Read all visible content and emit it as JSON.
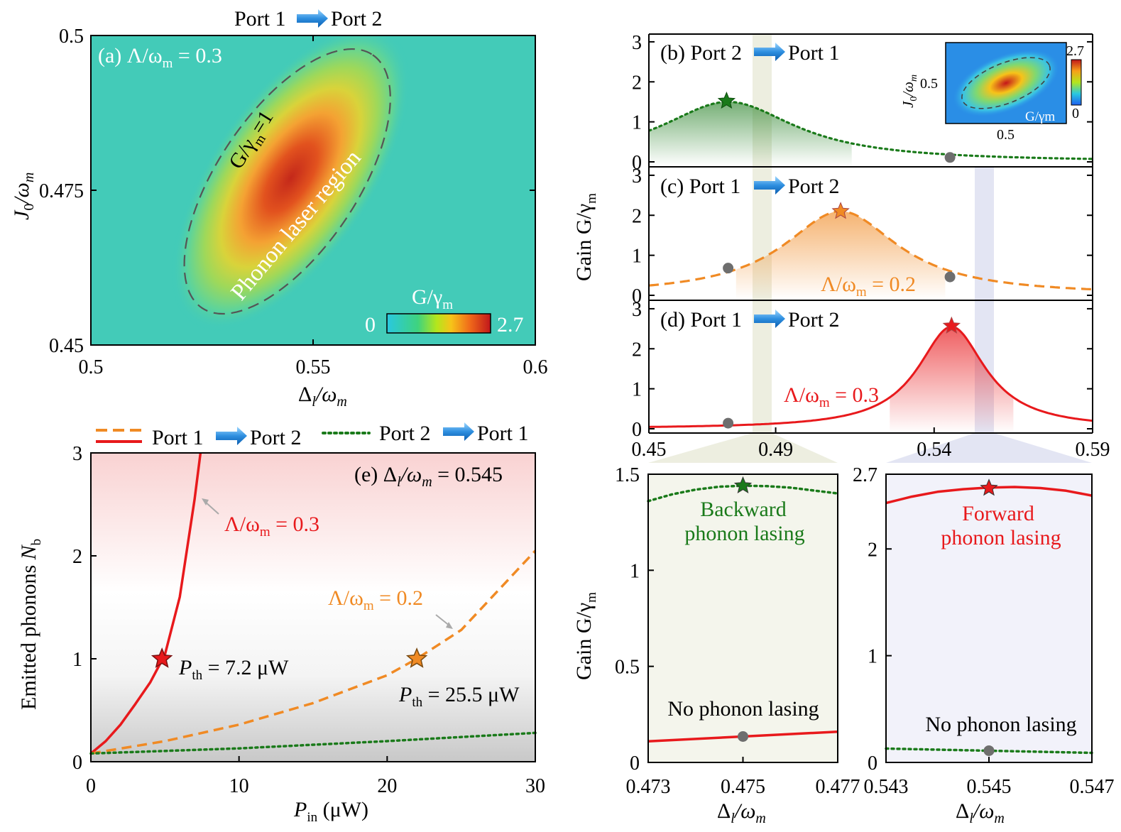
{
  "chart_data": [
    {
      "id": "a",
      "type": "heatmap",
      "header": {
        "from": "Port 1",
        "to": "Port 2"
      },
      "panel_label": "(a) Λ/ω",
      "panel_sub": "m",
      "panel_value": " = 0.3",
      "contour_label": "G/γ",
      "contour_sub": "m",
      "contour_value": "=1",
      "region_label": "Phonon laser region",
      "colorbar_title": "G/γ",
      "colorbar_sub": "m",
      "colorbar_min": "0",
      "colorbar_max": "2.7",
      "xlim": [
        0.5,
        0.6
      ],
      "ylim": [
        0.45,
        0.5
      ],
      "xticks": [
        "0.5",
        "0.55",
        "0.6"
      ],
      "yticks": [
        "0.45",
        "0.475",
        "0.5"
      ],
      "xlabel": "Δl/ωm",
      "ylabel": "J0/ωm",
      "peak": {
        "x": 0.545,
        "y": 0.477,
        "value": 2.7
      }
    },
    {
      "id": "b",
      "type": "line",
      "label": "(b) Port 2",
      "to": "Port 1",
      "xlim": [
        0.45,
        0.59
      ],
      "ylim": [
        0,
        3.3
      ],
      "yticks": [
        "0",
        "1",
        "2",
        "3"
      ],
      "series": [
        {
          "name": "Port 2 → Port 1",
          "center": 0.475,
          "peak": 1.5,
          "width": 0.026,
          "style": "dotted",
          "color": "#1a7a1a"
        }
      ],
      "star": {
        "x": 0.4745,
        "y": 1.52
      },
      "dot": {
        "x": 0.545,
        "y": 0.11
      },
      "inset": {
        "ylabel": "J0/ωm",
        "ytick": "0.5",
        "xtick": "0.5",
        "corner_label": "G/γm",
        "colorbar_max": "2.7",
        "colorbar_min": "0"
      }
    },
    {
      "id": "c",
      "type": "line",
      "label": "(c) Port 1",
      "to": "Port 2",
      "annotation": "Λ/ω",
      "annotation_sub": "m",
      "annotation_value": " = 0.2",
      "xlim": [
        0.45,
        0.59
      ],
      "ylim": [
        0,
        3.3
      ],
      "yticks": [
        "0",
        "1",
        "2",
        "3"
      ],
      "series": [
        {
          "name": "Port 1 → Port 2, Λ/ωm = 0.2",
          "center": 0.5105,
          "peak": 2.1,
          "width": 0.022,
          "style": "dashed",
          "color": "#f08a24"
        }
      ],
      "star": {
        "x": 0.5105,
        "y": 2.1
      },
      "dots": [
        {
          "x": 0.475,
          "y": 0.68
        },
        {
          "x": 0.545,
          "y": 0.46
        }
      ]
    },
    {
      "id": "d",
      "type": "line",
      "label": "(d) Port 1",
      "to": "Port 2",
      "annotation": "Λ/ω",
      "annotation_sub": "m",
      "annotation_value": " = 0.3",
      "xlim": [
        0.45,
        0.59
      ],
      "ylim": [
        0,
        3.3
      ],
      "xticks": [
        "0.45",
        "0.49",
        "0.54",
        "0.59"
      ],
      "xtick_values": [
        0.45,
        0.49,
        0.54,
        0.59
      ],
      "yticks": [
        "0",
        "1",
        "2",
        "3"
      ],
      "series": [
        {
          "name": "Port 1 → Port 2, Λ/ωm = 0.3",
          "center": 0.5455,
          "peak": 2.55,
          "width": 0.013,
          "style": "solid",
          "color": "#e8191c"
        }
      ],
      "star": {
        "x": 0.5455,
        "y": 2.57
      },
      "dot": {
        "x": 0.475,
        "y": 0.14
      },
      "ylabel": "Gain G/γm"
    },
    {
      "id": "e",
      "type": "line",
      "legend": [
        {
          "label": "Port 1",
          "to": "Port 2",
          "style": "dashed+solid"
        },
        {
          "label": "Port 2",
          "to": "Port 1",
          "style": "dotted"
        }
      ],
      "label": "(e) Δl/ωm = 0.545",
      "xlim": [
        0,
        30
      ],
      "ylim": [
        0,
        3
      ],
      "xticks": [
        "0",
        "10",
        "20",
        "30"
      ],
      "yticks": [
        "0",
        "1",
        "2",
        "3"
      ],
      "xlabel": "Pin (μW)",
      "ylabel": "Emitted phonons Nb",
      "series": [
        {
          "name": "Λ/ωm = 0.3",
          "style": "solid",
          "color": "#e8191c",
          "x": [
            0,
            1,
            2,
            3,
            4,
            5,
            6,
            7,
            7.4
          ],
          "y": [
            0.08,
            0.2,
            0.36,
            0.56,
            0.77,
            1.04,
            1.6,
            2.55,
            3.0
          ]
        },
        {
          "name": "Λ/ωm = 0.2",
          "style": "dashed",
          "color": "#f08a24",
          "x": [
            0,
            5,
            10,
            15,
            20,
            22,
            25,
            30
          ],
          "y": [
            0.08,
            0.2,
            0.36,
            0.57,
            0.84,
            1.0,
            1.28,
            2.05
          ]
        },
        {
          "name": "Port 2 → Port 1",
          "style": "dotted",
          "color": "#1a7a1a",
          "x": [
            0,
            10,
            20,
            30
          ],
          "y": [
            0.08,
            0.13,
            0.2,
            0.28
          ]
        }
      ],
      "annotations": {
        "red_curve": "Λ/ω",
        "red_value": " = 0.3",
        "orange_curve": "Λ/ω",
        "orange_value": " = 0.2",
        "pth_red": " = 7.2 μW",
        "pth_orange": " = 25.5 μW"
      },
      "stars": [
        {
          "x": 4.8,
          "y": 1.0
        },
        {
          "x": 22.0,
          "y": 1.0
        }
      ]
    },
    {
      "id": "f",
      "type": "line",
      "xlim": [
        0.473,
        0.477
      ],
      "ylim": [
        0,
        1.5
      ],
      "xticks": [
        "0.473",
        "0.475",
        "0.477"
      ],
      "yticks": [
        "0",
        "0.5",
        "1",
        "1.5"
      ],
      "xlabel": "Δl/ωm",
      "ylabel": "Gain G/γm",
      "top_text_1": "Backward",
      "top_text_2": "phonon lasing",
      "bottom_text": "No phonon lasing",
      "series": [
        {
          "name": "Port 2 → Port 1",
          "style": "dotted",
          "color": "#1a7a1a",
          "x": [
            0.473,
            0.4735,
            0.474,
            0.4745,
            0.475,
            0.4755,
            0.476,
            0.4765,
            0.477
          ],
          "y": [
            1.36,
            1.395,
            1.42,
            1.435,
            1.44,
            1.438,
            1.43,
            1.415,
            1.4
          ]
        },
        {
          "name": "Port 1 → Port 2",
          "style": "solid",
          "color": "#e8191c",
          "x": [
            0.473,
            0.477
          ],
          "y": [
            0.11,
            0.16
          ]
        }
      ],
      "star": {
        "x": 0.475,
        "y": 1.44
      },
      "dot": {
        "x": 0.475,
        "y": 0.135
      }
    },
    {
      "id": "g",
      "type": "line",
      "xlim": [
        0.543,
        0.547
      ],
      "ylim": [
        0,
        2.7
      ],
      "xticks": [
        "0.543",
        "0.545",
        "0.547"
      ],
      "yticks": [
        "0",
        "1",
        "2",
        "2.7"
      ],
      "xlabel": "Δl/ωm",
      "top_text_1": "Forward",
      "top_text_2": "phonon lasing",
      "bottom_text": "No phonon lasing",
      "series": [
        {
          "name": "Port 1 → Port 2",
          "style": "solid",
          "color": "#e8191c",
          "x": [
            0.543,
            0.5435,
            0.544,
            0.5445,
            0.545,
            0.5455,
            0.546,
            0.5465,
            0.547
          ],
          "y": [
            2.43,
            2.49,
            2.535,
            2.56,
            2.575,
            2.58,
            2.57,
            2.545,
            2.5
          ]
        },
        {
          "name": "Port 2 → Port 1",
          "style": "dotted",
          "color": "#1a7a1a",
          "x": [
            0.543,
            0.547
          ],
          "y": [
            0.13,
            0.09
          ]
        }
      ],
      "star": {
        "x": 0.545,
        "y": 2.57
      },
      "dot": {
        "x": 0.545,
        "y": 0.11
      }
    }
  ]
}
